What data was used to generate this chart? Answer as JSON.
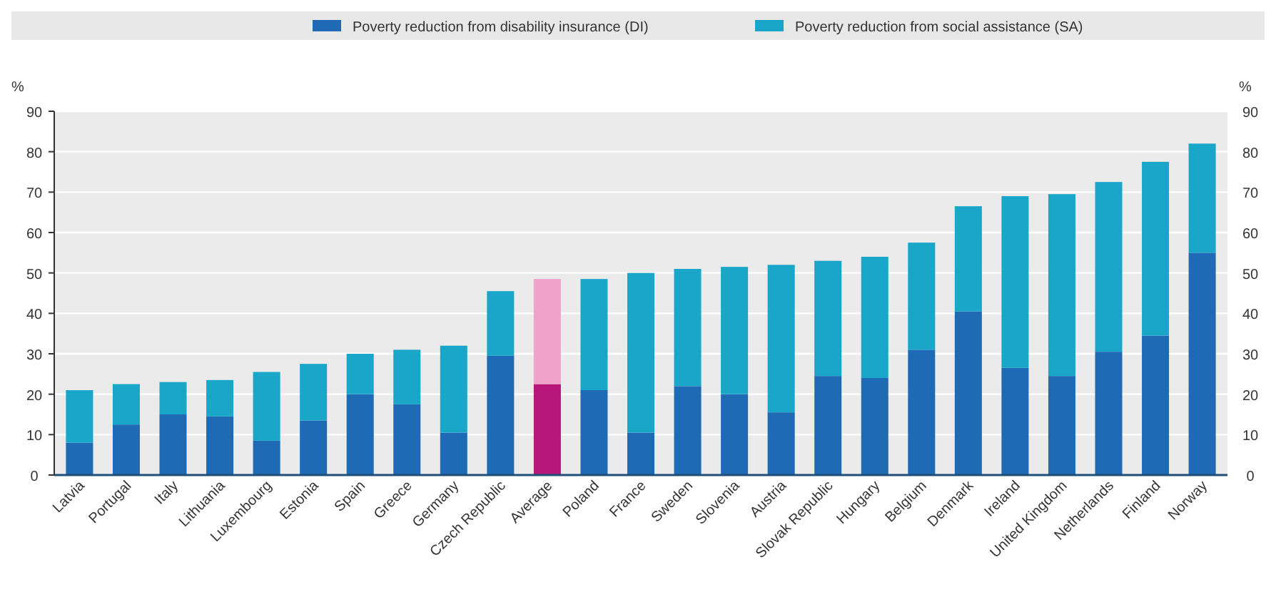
{
  "chart_data": {
    "type": "bar",
    "stacked": true,
    "categories": [
      "Latvia",
      "Portugal",
      "Italy",
      "Lithuania",
      "Luxembourg",
      "Estonia",
      "Spain",
      "Greece",
      "Germany",
      "Czech Republic",
      "Average",
      "Poland",
      "France",
      "Sweden",
      "Slovenia",
      "Austria",
      "Slovak Republic",
      "Hungary",
      "Belgium",
      "Denmark",
      "Ireland",
      "United Kingdom",
      "Netherlands",
      "Finland",
      "Norway"
    ],
    "series": [
      {
        "name": "Poverty reduction from disability insurance (DI)",
        "color": "#1f6ab5",
        "colors": [
          "#1f6ab5",
          "#1f6ab5",
          "#1f6ab5",
          "#1f6ab5",
          "#1f6ab5",
          "#1f6ab5",
          "#1f6ab5",
          "#1f6ab5",
          "#1f6ab5",
          "#1f6ab5",
          "#b5177a",
          "#1f6ab5",
          "#1f6ab5",
          "#1f6ab5",
          "#1f6ab5",
          "#1f6ab5",
          "#1f6ab5",
          "#1f6ab5",
          "#1f6ab5",
          "#1f6ab5",
          "#1f6ab5",
          "#1f6ab5",
          "#1f6ab5",
          "#1f6ab5",
          "#1f6ab5"
        ],
        "values": [
          8,
          12.5,
          15,
          14.5,
          8.5,
          13.5,
          20,
          17.5,
          10.5,
          29.5,
          22.5,
          21,
          10.5,
          22,
          20,
          15.5,
          24.5,
          24,
          31,
          40.5,
          26.5,
          24.5,
          30.5,
          34.5,
          55
        ]
      },
      {
        "name": "Poverty reduction from social assistance (SA)",
        "color": "#19a6c9",
        "colors": [
          "#19a6c9",
          "#19a6c9",
          "#19a6c9",
          "#19a6c9",
          "#19a6c9",
          "#19a6c9",
          "#19a6c9",
          "#19a6c9",
          "#19a6c9",
          "#19a6c9",
          "#f0a3c8",
          "#19a6c9",
          "#19a6c9",
          "#19a6c9",
          "#19a6c9",
          "#19a6c9",
          "#19a6c9",
          "#19a6c9",
          "#19a6c9",
          "#19a6c9",
          "#19a6c9",
          "#19a6c9",
          "#19a6c9",
          "#19a6c9",
          "#19a6c9"
        ],
        "values": [
          13,
          10,
          8,
          9,
          17,
          14,
          10,
          13.5,
          21.5,
          16,
          26,
          27.5,
          39.5,
          29,
          31.5,
          36.5,
          28.5,
          30,
          26.5,
          26,
          42.5,
          45,
          42,
          43,
          27
        ]
      }
    ],
    "ylabel": "%",
    "y2label": "%",
    "ylim": [
      0,
      90
    ],
    "yticks": [
      0,
      10,
      20,
      30,
      40,
      50,
      60,
      70,
      80,
      90
    ],
    "y2lim": [
      0,
      90
    ],
    "y2ticks": [
      0,
      10,
      20,
      30,
      40,
      50,
      60,
      70,
      80,
      90
    ],
    "grid": "y",
    "legend": "top"
  }
}
